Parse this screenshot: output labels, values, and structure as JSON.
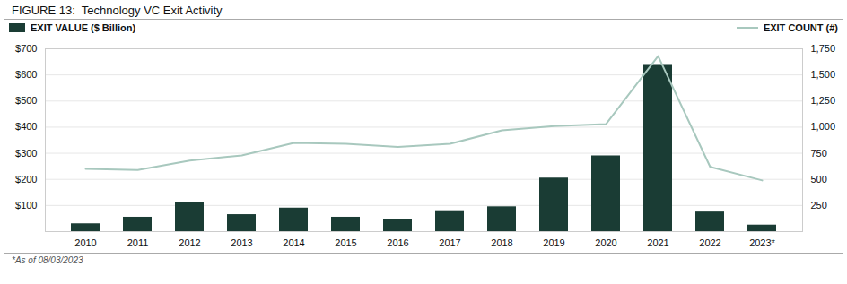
{
  "chart_data": {
    "type": "bar",
    "title": "FIGURE 13:  Technology VC Exit Activity",
    "annotations": [
      "*As of 08/03/2023"
    ],
    "categories": [
      "2010",
      "2011",
      "2012",
      "2013",
      "2014",
      "2015",
      "2016",
      "2017",
      "2018",
      "2019",
      "2020",
      "2021",
      "2022",
      "2023*"
    ],
    "series": [
      {
        "name": "EXIT VALUE ($ Billion)",
        "type": "bar",
        "color": "#1a3c34",
        "values": [
          30,
          55,
          110,
          65,
          90,
          55,
          45,
          80,
          95,
          205,
          290,
          640,
          75,
          25
        ]
      },
      {
        "name": "EXIT COUNT (#)",
        "type": "line",
        "axis": "y2",
        "color": "#a8c8be",
        "values": [
          600,
          590,
          680,
          730,
          850,
          840,
          810,
          840,
          970,
          1010,
          1030,
          1680,
          620,
          490
        ]
      }
    ],
    "ylim": [
      0,
      700
    ],
    "yticks": [
      {
        "value": 100,
        "label": "$100"
      },
      {
        "value": 200,
        "label": "$200"
      },
      {
        "value": 300,
        "label": "$300"
      },
      {
        "value": 400,
        "label": "$400"
      },
      {
        "value": 500,
        "label": "$500"
      },
      {
        "value": 600,
        "label": "$600"
      },
      {
        "value": 700,
        "label": "$700"
      }
    ],
    "y2lim": [
      0,
      1750
    ],
    "y2ticks": [
      250,
      500,
      750,
      {
        "value": 1000,
        "label": "1,000"
      },
      {
        "value": 1250,
        "label": "1,250"
      },
      {
        "value": 1500,
        "label": "1,500"
      },
      {
        "value": 1750,
        "label": "1,750"
      }
    ],
    "grid": true,
    "legend": "top"
  }
}
